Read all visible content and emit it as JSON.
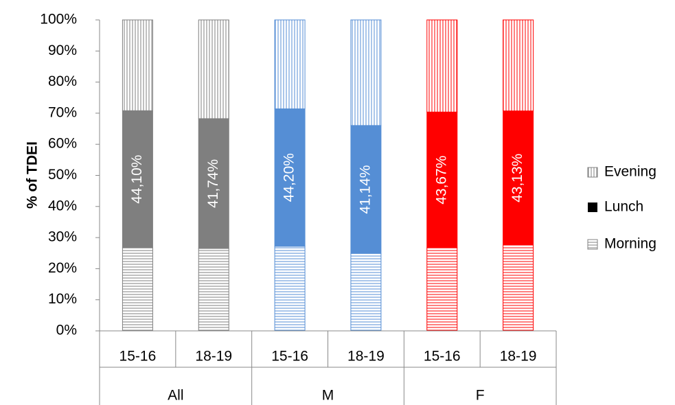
{
  "chart_data": {
    "type": "stacked_bar",
    "y_axis_label": "% of TDEI",
    "groups": [
      {
        "name": "All",
        "color": "#7f7f7f",
        "categories": [
          "15-16",
          "18-19"
        ]
      },
      {
        "name": "M",
        "color": "#558ed5",
        "categories": [
          "15-16",
          "18-19"
        ]
      },
      {
        "name": "F",
        "color": "#ff0000",
        "categories": [
          "15-16",
          "18-19"
        ]
      }
    ],
    "series": [
      {
        "name": "Evening",
        "pattern": "vertical",
        "color": "#808080",
        "values": [
          29.2,
          31.76,
          28.6,
          33.96,
          29.63,
          29.27
        ]
      },
      {
        "name": "Lunch",
        "pattern": "solid",
        "color": "#000000",
        "values": [
          44.1,
          41.74,
          44.2,
          41.14,
          43.67,
          43.13
        ],
        "value_labels": [
          "44,10%",
          "41,74%",
          "44,20%",
          "41,14%",
          "43,67%",
          "43,13%"
        ]
      },
      {
        "name": "Morning",
        "pattern": "horizontal",
        "color": "#808080",
        "values": [
          26.7,
          26.5,
          27.2,
          24.9,
          26.7,
          27.6
        ]
      }
    ],
    "ylim": [
      0,
      100
    ],
    "yticks": [
      {
        "value": 0,
        "label": "0%"
      },
      {
        "value": 10,
        "label": "10%"
      },
      {
        "value": 20,
        "label": "20%"
      },
      {
        "value": 30,
        "label": "30%"
      },
      {
        "value": 40,
        "label": "40%"
      },
      {
        "value": 50,
        "label": "50%"
      },
      {
        "value": 60,
        "label": "60%"
      },
      {
        "value": 70,
        "label": "70%"
      },
      {
        "value": 80,
        "label": "80%"
      },
      {
        "value": 90,
        "label": "90%"
      },
      {
        "value": 100,
        "label": "100%"
      }
    ],
    "legend": "right"
  }
}
